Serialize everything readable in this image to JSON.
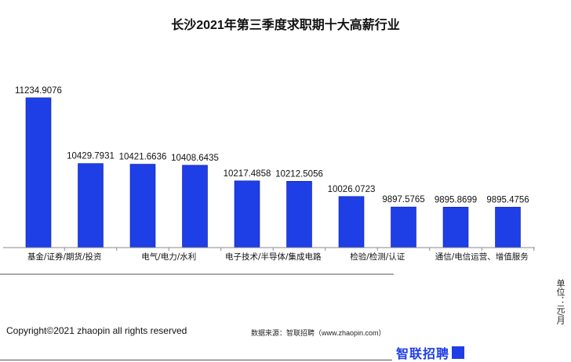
{
  "chart_data": {
    "type": "bar",
    "title": "长沙2021年第三季度求职期十大高薪行业",
    "categories": [
      "基金/证券/期货/投资",
      "",
      "电气/电力/水利",
      "",
      "电子技术/半导体/集成电路",
      "",
      "检验/检测/认证",
      "",
      "通信/电信运营、增值服务",
      ""
    ],
    "values": [
      11234.9076,
      10429.7931,
      10421.6636,
      10408.6435,
      10217.4858,
      10212.5056,
      10026.0723,
      9897.5765,
      9895.8699,
      9895.4756
    ],
    "value_labels": [
      "11234.9076",
      "10429.7931",
      "10421.6636",
      "10408.6435",
      "10217.4858",
      "10212.5056",
      "10026.0723",
      "9897.5765",
      "9895.8699",
      "9895.4756"
    ],
    "xlabel": "",
    "ylabel": "",
    "ylim": [
      9400,
      11300
    ],
    "bar_color": "#1e3ee6",
    "grid": false,
    "legend": "none"
  },
  "footer": {
    "copyright": "Copyright©2021 zhaopin all rights reserved",
    "source": "数据来源：智联招聘（www.zhaopin.com）",
    "unit": "单位：元/月",
    "brand": "智联招聘"
  }
}
